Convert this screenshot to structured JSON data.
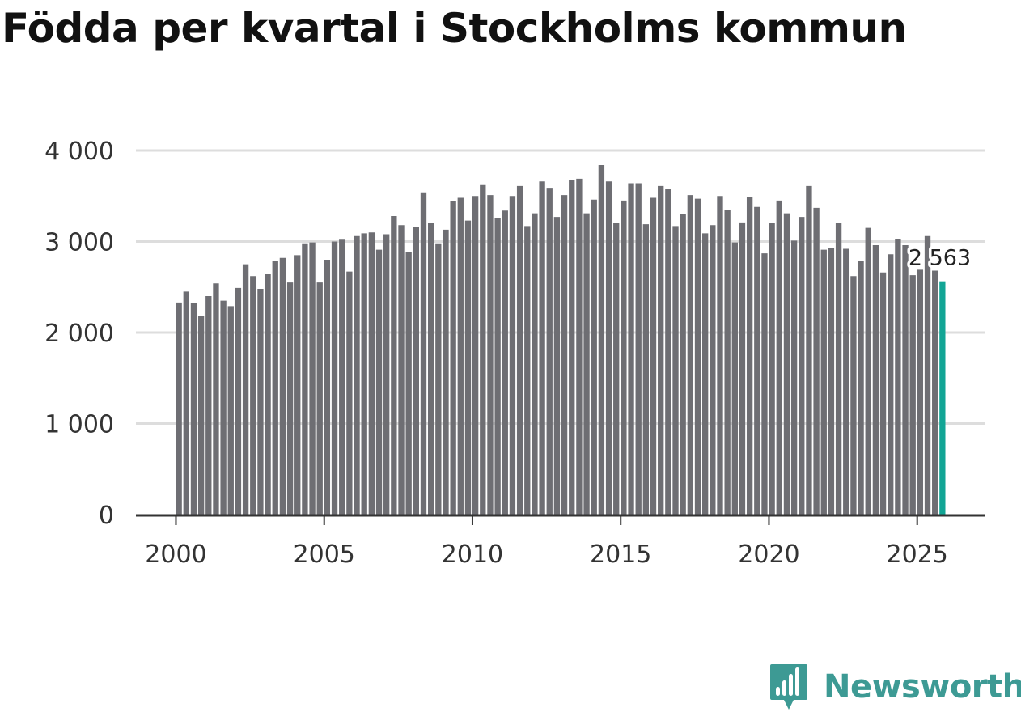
{
  "chart_data": {
    "type": "bar",
    "title": "Födda per kvartal i Stockholms kommun",
    "subtitle": "",
    "xlabel": "",
    "ylabel": "",
    "x_start": 2000,
    "x_step": 0.25,
    "values": [
      2330,
      2450,
      2320,
      2180,
      2400,
      2540,
      2350,
      2290,
      2490,
      2750,
      2620,
      2480,
      2640,
      2790,
      2820,
      2550,
      2850,
      2980,
      2990,
      2550,
      2800,
      3000,
      3020,
      2670,
      3060,
      3090,
      3100,
      2910,
      3080,
      3280,
      3180,
      2880,
      3160,
      3540,
      3200,
      2980,
      3130,
      3440,
      3480,
      3230,
      3500,
      3620,
      3510,
      3260,
      3340,
      3500,
      3610,
      3170,
      3310,
      3660,
      3590,
      3270,
      3510,
      3680,
      3690,
      3310,
      3460,
      3840,
      3660,
      3200,
      3450,
      3640,
      3640,
      3190,
      3480,
      3610,
      3580,
      3170,
      3300,
      3510,
      3470,
      3090,
      3180,
      3500,
      3350,
      2990,
      3210,
      3490,
      3380,
      2870,
      3200,
      3450,
      3310,
      3010,
      3270,
      3610,
      3370,
      2910,
      2930,
      3200,
      2920,
      2620,
      2790,
      3150,
      2960,
      2660,
      2860,
      3030,
      2960,
      2630,
      2690,
      3060,
      2680,
      2563
    ],
    "highlight_index": 103,
    "annotation": "2 563",
    "x_ticks": [
      2000,
      2005,
      2010,
      2015,
      2020,
      2025
    ],
    "y_ticks": [
      0,
      1000,
      2000,
      3000,
      4000
    ],
    "y_tick_labels": [
      "0",
      "1 000",
      "2 000",
      "3 000",
      "4 000"
    ],
    "ylim": [
      0,
      4000
    ],
    "xlim": [
      1998.65,
      2027.3
    ],
    "grid": true,
    "legend": "none",
    "bar_color": "#6e6e73",
    "highlight_color": "#12a595",
    "grid_color": "#dddddd",
    "axis_color": "#333333"
  },
  "brand": {
    "name": "Newsworthy",
    "color": "#3d9a94",
    "icon": "chart-bubble-icon"
  }
}
